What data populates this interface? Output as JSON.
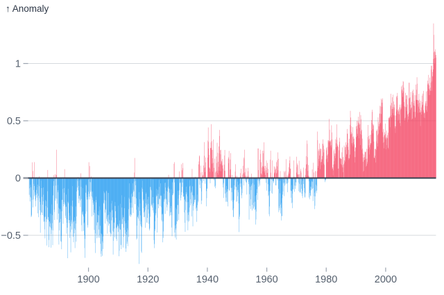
{
  "page": {
    "background": "#ffffff"
  },
  "chart_data": {
    "type": "bar",
    "y_axis_label": "↑ Anomaly",
    "ylabel": "Anomaly",
    "xlabel": "",
    "resolution": "monthly",
    "xlim": [
      1880,
      2017
    ],
    "ylim": [
      -0.78,
      1.43
    ],
    "grid": true,
    "legend": false,
    "x_ticks": [
      1900,
      1920,
      1940,
      1960,
      1980,
      2000
    ],
    "y_ticks": [
      {
        "v": 1,
        "label": "1"
      },
      {
        "v": 0.5,
        "label": "0.5"
      },
      {
        "v": 0,
        "label": "0"
      },
      {
        "v": -0.5,
        "label": "−0.5"
      }
    ],
    "annual_start_year": 1880,
    "annual_mean_anomaly": [
      -0.16,
      -0.08,
      -0.1,
      -0.17,
      -0.28,
      -0.33,
      -0.31,
      -0.36,
      -0.17,
      -0.1,
      -0.35,
      -0.22,
      -0.27,
      -0.31,
      -0.3,
      -0.22,
      -0.11,
      -0.11,
      -0.27,
      -0.17,
      -0.08,
      -0.15,
      -0.28,
      -0.37,
      -0.47,
      -0.26,
      -0.22,
      -0.39,
      -0.43,
      -0.48,
      -0.43,
      -0.44,
      -0.36,
      -0.34,
      -0.15,
      -0.14,
      -0.36,
      -0.46,
      -0.3,
      -0.28,
      -0.27,
      -0.19,
      -0.28,
      -0.26,
      -0.27,
      -0.22,
      -0.1,
      -0.22,
      -0.2,
      -0.36,
      -0.16,
      -0.09,
      -0.16,
      -0.29,
      -0.12,
      -0.2,
      -0.15,
      -0.03,
      0.0,
      -0.02,
      0.13,
      0.19,
      0.07,
      0.09,
      0.2,
      0.09,
      -0.07,
      -0.03,
      -0.11,
      -0.11,
      -0.17,
      -0.07,
      0.01,
      0.08,
      -0.13,
      -0.14,
      -0.19,
      0.05,
      0.06,
      0.03,
      -0.03,
      0.06,
      0.03,
      0.05,
      -0.2,
      -0.11,
      -0.06,
      -0.02,
      -0.08,
      0.05,
      0.03,
      -0.08,
      0.01,
      0.16,
      -0.07,
      -0.01,
      -0.1,
      0.18,
      0.07,
      0.16,
      0.26,
      0.32,
      0.14,
      0.31,
      0.16,
      0.12,
      0.18,
      0.32,
      0.39,
      0.27,
      0.45,
      0.41,
      0.22,
      0.23,
      0.32,
      0.45,
      0.33,
      0.46,
      0.61,
      0.38,
      0.39,
      0.54,
      0.63,
      0.62,
      0.54,
      0.68,
      0.64,
      0.66,
      0.54,
      0.66,
      0.72,
      0.61,
      0.65,
      0.68,
      0.75,
      0.9,
      1.02
    ],
    "notable_points": [
      {
        "year": 1893,
        "month": 1,
        "value": -0.7
      },
      {
        "year": 1917,
        "month": 1,
        "value": -0.75
      },
      {
        "year": 1944,
        "month": 2,
        "value": 0.42
      },
      {
        "year": 2016,
        "month": 2,
        "value": 1.35
      },
      {
        "year": 2016,
        "month": 3,
        "value": 1.25
      }
    ],
    "colors": {
      "positive": "#f43f5e",
      "negative": "#1796f0",
      "zero_line": "#39404f",
      "grid": "#d6dade",
      "tick": "#9aa2ae",
      "tick_label": "#545f6d",
      "axis_title": "#2e3847"
    },
    "render_hints": {
      "noise_seed": 11,
      "noise_amplitude_start": 0.2,
      "noise_amplitude_end": 0.11
    }
  }
}
